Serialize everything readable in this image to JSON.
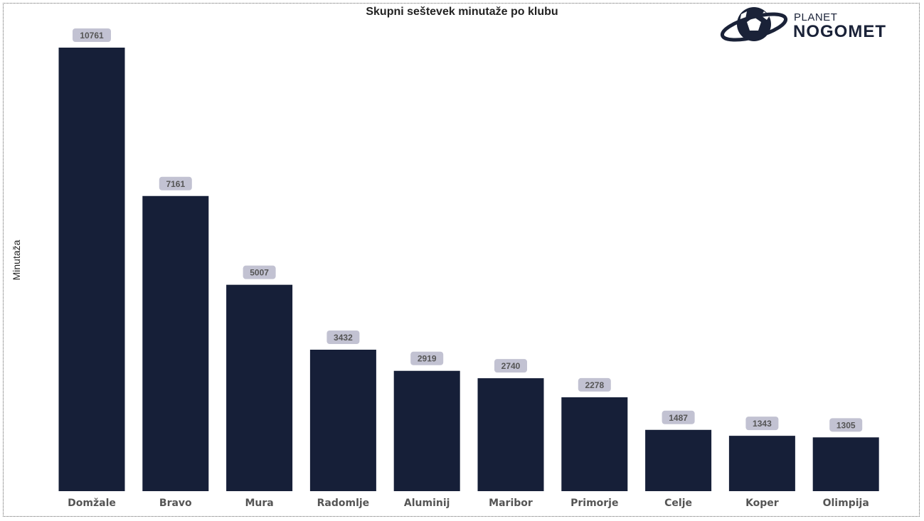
{
  "logo": {
    "line1": "PLANET",
    "line2": "NOGOMET"
  },
  "chart_data": {
    "type": "bar",
    "title": "Skupni seštevek minutaže po klubu",
    "xlabel": "",
    "ylabel": "Minutaža",
    "categories": [
      "Domžale",
      "Bravo",
      "Mura",
      "Radomlje",
      "Aluminij",
      "Maribor",
      "Primorje",
      "Celje",
      "Koper",
      "Olimpija"
    ],
    "values": [
      10761,
      7161,
      5007,
      3432,
      2919,
      2740,
      2278,
      1487,
      1343,
      1305
    ],
    "ylim": [
      0,
      10761
    ],
    "grid": false,
    "colors": {
      "bar": "#161f38",
      "label_bg": "#c2c2d2",
      "label_text": "#555555"
    }
  }
}
